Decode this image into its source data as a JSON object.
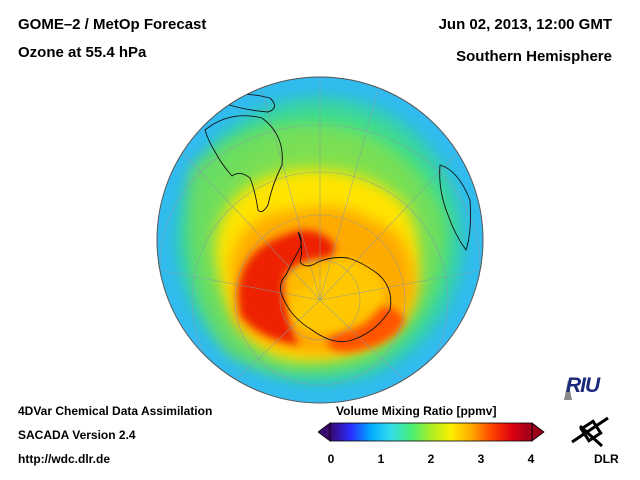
{
  "header": {
    "title_line1": "GOME–2 / MetOp Forecast",
    "title_line2": "Ozone at 55.4 hPa",
    "datetime": "Jun 02, 2013, 12:00 GMT",
    "hemisphere": "Southern Hemisphere"
  },
  "footer": {
    "line1": "4DVar Chemical Data Assimilation",
    "line2": "SACADA Version 2.4",
    "line3": "http://wdc.dlr.de"
  },
  "colorbar": {
    "title": "Volume Mixing Ratio [ppmv]",
    "ticks": [
      "0",
      "1",
      "2",
      "3",
      "4"
    ],
    "min": 0,
    "max": 4,
    "colors": [
      "#3a0a6e",
      "#2a2aff",
      "#00aaff",
      "#33ddee",
      "#44ee77",
      "#aaee22",
      "#ffee00",
      "#ffaa00",
      "#ff4400",
      "#dd0011",
      "#99001a"
    ]
  },
  "logos": {
    "riu": "RIU",
    "dlr": "DLR"
  }
}
